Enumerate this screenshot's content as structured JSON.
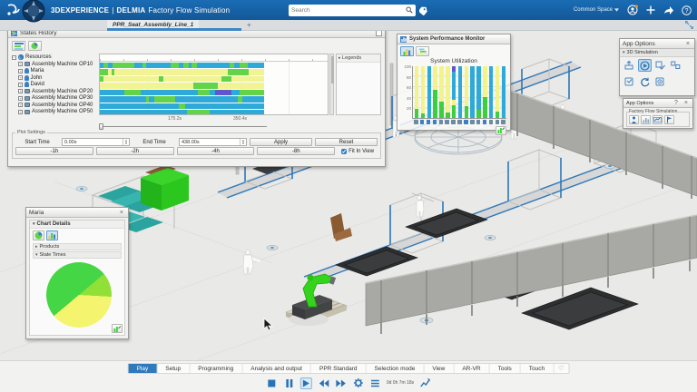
{
  "accent_color": "#2d7dc0",
  "topbar": {
    "brand": "3DEXPERIENCE",
    "pipe": "|",
    "product": "DELMIA",
    "app_name": "Factory Flow Simulation",
    "search_placeholder": "Search",
    "space_selector": "Common Space",
    "notification_icon": "user-circle",
    "plus_label": "+"
  },
  "tabrow": {
    "document_tab": "PPR_Seat_Assembly_Line_1",
    "new_tab_label": "+"
  },
  "states_history": {
    "title": "States History",
    "tree_root_label": "Resources",
    "legends_label": "Legends",
    "legends_caret": "▸",
    "plot_settings": {
      "group_label": "Plot Settings",
      "start_time_label": "Start Time",
      "start_time_value": "0.00s",
      "end_time_label": "End Time",
      "end_time_value": "438.00s",
      "apply_label": "Apply",
      "reset_label": "Reset",
      "quick_buttons": [
        "-1h",
        "-2h",
        "-4h",
        "-8h"
      ],
      "fit_in_view_label": "Fit In View",
      "fit_in_view_checked": true
    }
  },
  "performance_monitor": {
    "title": "System Performance Monitor",
    "chart_title": "System Utilization"
  },
  "app_options_panel": {
    "title": "App Options",
    "close_label": "×",
    "section_label": "3D Simulation",
    "section_caret": "▾",
    "row1_icon_count": 4,
    "row2_icon_count": 3
  },
  "app_options_dialog": {
    "title": "App Options",
    "help_label": "?",
    "close_label": "×",
    "group_label": "Factory Flow Simulation",
    "icon_count": 4
  },
  "chart_details": {
    "window_tab": "Maria",
    "close_label": "×",
    "header_label": "Chart Details",
    "header_caret": "▾",
    "products_label": "Products",
    "products_caret": "▸",
    "state_times_label": "State Times",
    "state_times_caret": "▾"
  },
  "action_bar": {
    "tabs": [
      "Play",
      "Setup",
      "Programming",
      "Analysis and output",
      "PPR Standard",
      "Selection mode",
      "View",
      "AR-VR",
      "Tools",
      "Touch"
    ],
    "active_tab": "Play",
    "favorite_icon": "♡"
  },
  "playback": {
    "elapsed": "0d 0h 7m 18s"
  },
  "chart_data": [
    {
      "id": "states_history_gantt",
      "type": "gantt",
      "title": "States History",
      "x_axis_ticks": [
        {
          "label": "175.2s",
          "pos_pct": 28.8
        },
        {
          "label": "350.4s",
          "pos_pct": 57.6
        }
      ],
      "time_range_s": [
        0,
        438
      ],
      "bar_end_fraction": 0.72,
      "state_colors": {
        "machine_base": "#2fa9d8",
        "human_base": "#f2f493",
        "working": "#63d44a",
        "blocked": "#6157cd"
      },
      "rows": [
        {
          "name": "Assembly Machine OP10",
          "kind": "machine",
          "segments": [
            {
              "state": "working",
              "start": 2,
              "width": 3
            },
            {
              "state": "working",
              "start": 8,
              "width": 13
            },
            {
              "state": "working",
              "start": 26,
              "width": 2
            },
            {
              "state": "working",
              "start": 43,
              "width": 5
            },
            {
              "state": "working",
              "start": 51,
              "width": 3
            },
            {
              "state": "working",
              "start": 56,
              "width": 3
            },
            {
              "state": "working",
              "start": 79,
              "width": 3
            },
            {
              "state": "working",
              "start": 85,
              "width": 5
            }
          ]
        },
        {
          "name": "Maria",
          "kind": "human",
          "segments": [
            {
              "state": "working",
              "start": 0,
              "width": 5
            },
            {
              "state": "working",
              "start": 7,
              "width": 2
            },
            {
              "state": "working",
              "start": 78,
              "width": 13
            }
          ]
        },
        {
          "name": "John",
          "kind": "human",
          "segments": [
            {
              "state": "working",
              "start": 0,
              "width": 2
            },
            {
              "state": "working",
              "start": 36,
              "width": 3
            },
            {
              "state": "working",
              "start": 74,
              "width": 6
            }
          ]
        },
        {
          "name": "David",
          "kind": "human",
          "segments": [
            {
              "state": "working",
              "start": 57,
              "width": 15
            }
          ]
        },
        {
          "name": "Assembly Machine OP20",
          "kind": "machine",
          "segments": [
            {
              "state": "working",
              "start": 15,
              "width": 10
            },
            {
              "state": "working",
              "start": 60,
              "width": 7
            },
            {
              "state": "blocked",
              "start": 70,
              "width": 10
            },
            {
              "state": "working",
              "start": 85,
              "width": 15
            }
          ]
        },
        {
          "name": "Assembly Machine OP30",
          "kind": "machine",
          "segments": [
            {
              "state": "working",
              "start": 28,
              "width": 2
            },
            {
              "state": "working",
              "start": 33,
              "width": 13
            },
            {
              "state": "working",
              "start": 84,
              "width": 3
            }
          ]
        },
        {
          "name": "Assembly Machine OP40",
          "kind": "machine",
          "segments": [
            {
              "state": "working",
              "start": 48,
              "width": 4
            }
          ]
        },
        {
          "name": "Assembly Machine OP50",
          "kind": "machine",
          "segments": [
            {
              "state": "working",
              "start": 53,
              "width": 14
            }
          ]
        }
      ]
    },
    {
      "id": "system_utilization",
      "type": "stacked_bar",
      "title": "System Utilization",
      "ylim": [
        0,
        100
      ],
      "yticks": [
        "100",
        "80",
        "60",
        "40",
        "20"
      ],
      "stack_order": [
        "busy",
        "idle",
        "waiting",
        "blocked"
      ],
      "series_colors": {
        "busy": "#3ecf3e",
        "idle": "#f2f48a",
        "waiting": "#2fa9d8",
        "blocked": "#6157cd"
      },
      "bars": [
        {
          "busy": 18,
          "idle": 82
        },
        {
          "busy": 8,
          "idle": 92
        },
        {
          "waiting": 100
        },
        {
          "busy": 55,
          "idle": 45
        },
        {
          "busy": 32,
          "idle": 68
        },
        {
          "busy": 10,
          "idle": 90
        },
        {
          "busy": 25,
          "idle": 10,
          "waiting": 55,
          "blocked": 10
        },
        {
          "waiting": 100
        },
        {
          "busy": 22,
          "idle": 78
        },
        {
          "waiting": 100
        },
        {
          "busy": 15,
          "waiting": 85
        },
        {
          "busy": 40,
          "idle": 60
        },
        {
          "waiting": 100
        },
        {
          "busy": 12,
          "idle": 88
        },
        {
          "waiting": 100
        }
      ],
      "bar_icon_kinds": [
        "machine",
        "human",
        "human",
        "human",
        "machine",
        "machine",
        "machine",
        "machine",
        "human",
        "machine",
        "machine",
        "human",
        "machine",
        "machine",
        "machine"
      ]
    },
    {
      "id": "maria_state_times",
      "type": "pie",
      "start_angle_deg": 230,
      "slices": [
        {
          "value": 50,
          "color": "#44d644"
        },
        {
          "value": 12,
          "color": "#90e038"
        },
        {
          "value": 38,
          "color": "#f4f46e"
        }
      ]
    }
  ]
}
